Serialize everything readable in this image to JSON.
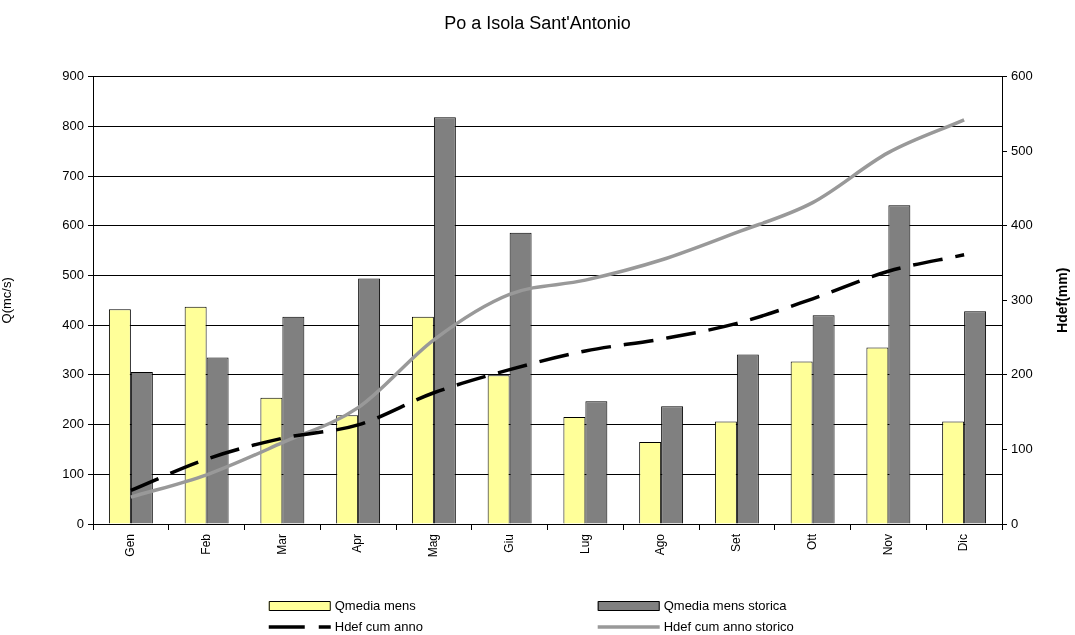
{
  "chart_data": {
    "type": "bar",
    "title": "Po a Isola Sant'Antonio",
    "ylabel": "Q(mc/s)",
    "y2label": "Hdef(mm)",
    "categories": [
      "Gen",
      "Feb",
      "Mar",
      "Apr",
      "Mag",
      "Giu",
      "Lug",
      "Ago",
      "Set",
      "Ott",
      "Nov",
      "Dic"
    ],
    "series": [
      {
        "name": "Qmedia mens",
        "color": "#ffff99",
        "values": [
          432,
          437,
          254,
          219,
          417,
          299,
          215,
          165,
          206,
          327,
          355,
          206
        ]
      },
      {
        "name": "Qmedia mens storica",
        "color": "#808080",
        "values": [
          306,
          335,
          417,
          494,
          818,
          586,
          247,
          237,
          341,
          420,
          641,
          428
        ]
      },
      {
        "name": "Hdef cum anno",
        "type": "line",
        "axis": "y2",
        "line_style": "dashed",
        "color": "#000000",
        "values": [
          45,
          87,
          115,
          133,
          176,
          207,
          232,
          248,
          269,
          302,
          339,
          361
        ]
      },
      {
        "name": "Hdef cum anno storico",
        "type": "line",
        "axis": "y2",
        "line_style": "solid",
        "color": "#999999",
        "values": [
          36,
          66,
          109,
          156,
          247,
          308,
          327,
          354,
          391,
          431,
          498,
          542
        ]
      }
    ],
    "ylim": [
      0,
      900
    ],
    "yticks": [
      0,
      100,
      200,
      300,
      400,
      500,
      600,
      700,
      800,
      900
    ],
    "y2lim": [
      0,
      600
    ],
    "y2ticks": [
      0,
      100,
      200,
      300,
      400,
      500,
      600
    ],
    "grid": "y",
    "legend": "bottom"
  }
}
